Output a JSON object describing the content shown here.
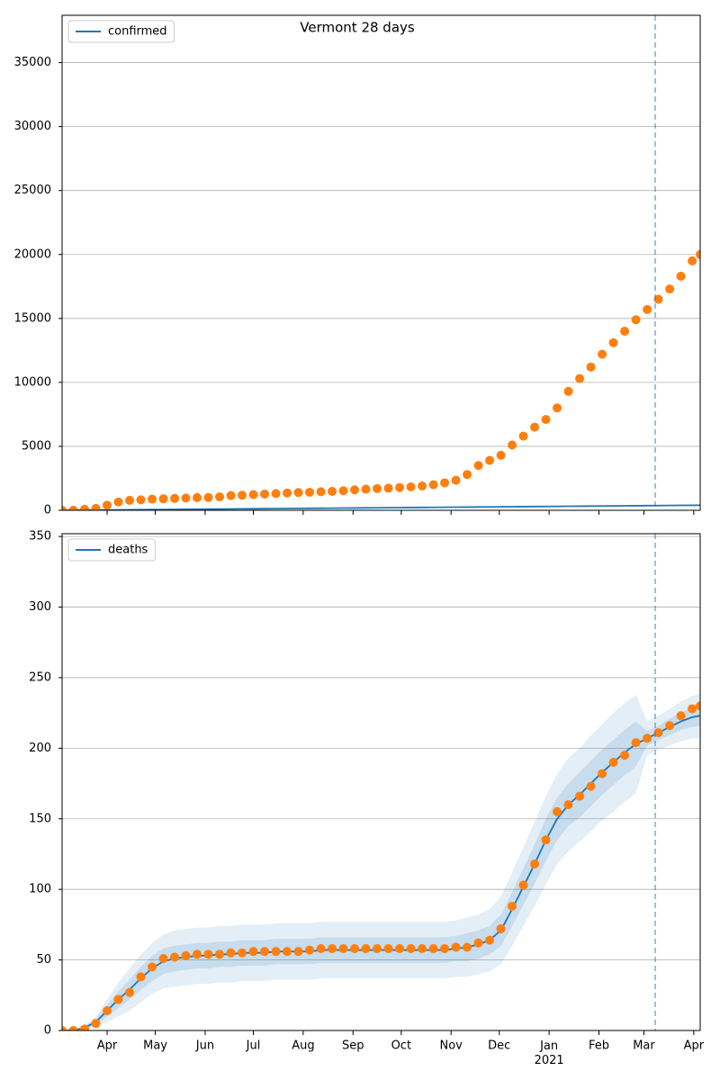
{
  "chart_data": [
    {
      "type": "line",
      "title": "Vermont 28 days",
      "x": [
        63,
        70,
        77,
        84,
        91,
        98,
        105,
        112,
        119,
        126,
        133,
        140,
        147,
        154,
        161,
        168,
        175,
        182,
        189,
        196,
        203,
        210,
        217,
        224,
        231,
        238,
        245,
        252,
        259,
        266,
        273,
        280,
        287,
        294,
        301,
        308,
        315,
        322,
        329,
        336,
        343,
        350,
        357,
        364,
        371,
        378,
        385,
        392,
        399,
        406,
        413,
        420,
        427,
        434,
        441,
        448,
        455,
        460
      ],
      "series": [
        {
          "name": "confirmed",
          "color": "#1f77b4",
          "values": [
            0,
            7,
            14,
            21,
            28,
            35,
            42,
            49,
            56,
            63,
            70,
            77,
            84,
            91,
            98,
            105,
            112,
            119,
            126,
            133,
            140,
            147,
            154,
            161,
            168,
            175,
            182,
            189,
            196,
            203,
            210,
            217,
            224,
            231,
            238,
            245,
            252,
            259,
            266,
            273,
            280,
            287,
            294,
            301,
            308,
            315,
            322,
            329,
            336,
            343,
            350,
            357,
            364,
            371,
            378,
            385,
            392,
            397
          ]
        }
      ],
      "points": {
        "color": "#ff7f0e",
        "values": [
          0,
          10,
          80,
          150,
          400,
          650,
          780,
          820,
          870,
          900,
          930,
          960,
          990,
          1000,
          1050,
          1150,
          1180,
          1230,
          1270,
          1310,
          1350,
          1390,
          1410,
          1450,
          1480,
          1530,
          1600,
          1650,
          1700,
          1730,
          1780,
          1830,
          1900,
          2000,
          2150,
          2350,
          2800,
          3500,
          3900,
          4300,
          5100,
          5800,
          6500,
          7100,
          8000,
          9300,
          10300,
          11200,
          12200,
          13100,
          14000,
          14900,
          15700,
          16500,
          17300,
          18300,
          19500,
          20000
        ]
      },
      "vline": 432,
      "xlim": [
        63,
        460
      ],
      "xticks": [
        91,
        121,
        152,
        182,
        213,
        244,
        274,
        305,
        335,
        366,
        397,
        425,
        456
      ],
      "xtick_labels": false,
      "ylim": [
        0,
        38700
      ],
      "yticks": [
        0,
        5000,
        10000,
        15000,
        20000,
        25000,
        30000,
        35000
      ],
      "grid": true,
      "legend": "upper left"
    },
    {
      "type": "line",
      "x": [
        63,
        70,
        77,
        84,
        91,
        98,
        105,
        112,
        119,
        126,
        133,
        140,
        147,
        154,
        161,
        168,
        175,
        182,
        189,
        196,
        203,
        210,
        217,
        224,
        231,
        238,
        245,
        252,
        259,
        266,
        273,
        280,
        287,
        294,
        301,
        308,
        315,
        322,
        329,
        336,
        343,
        350,
        357,
        364,
        371,
        378,
        385,
        392,
        399,
        406,
        413,
        420,
        427,
        434,
        441,
        448,
        455,
        460
      ],
      "series": [
        {
          "name": "deaths",
          "color": "#1f77b4",
          "values": [
            0,
            0,
            2,
            6,
            14,
            22,
            29,
            37,
            44,
            49,
            51,
            52,
            53,
            53,
            54,
            54,
            55,
            55,
            55,
            56,
            56,
            56,
            56,
            57,
            57,
            57,
            57,
            57,
            57,
            57,
            57,
            57,
            57,
            57,
            57,
            58,
            59,
            61,
            64,
            71,
            86,
            102,
            118,
            135,
            150,
            160,
            167,
            175,
            183,
            190,
            197,
            203,
            207,
            211,
            215,
            219,
            222,
            223
          ]
        }
      ],
      "bands": [
        {
          "color": "#1f77b4",
          "opacity": 0.12,
          "lower": [
            0,
            0,
            0,
            2,
            6,
            10,
            14,
            20,
            26,
            30,
            31,
            32,
            33,
            33,
            34,
            34,
            35,
            35,
            35,
            36,
            36,
            36,
            36,
            37,
            37,
            37,
            37,
            37,
            37,
            37,
            37,
            37,
            37,
            37,
            37,
            38,
            38,
            40,
            42,
            47,
            60,
            74,
            88,
            104,
            118,
            127,
            134,
            141,
            149,
            155,
            162,
            168,
            195,
            199,
            202,
            205,
            207,
            207
          ],
          "upper": [
            0,
            1,
            4,
            10,
            22,
            34,
            44,
            54,
            62,
            68,
            71,
            72,
            73,
            73,
            74,
            74,
            75,
            75,
            75,
            76,
            76,
            76,
            76,
            77,
            77,
            77,
            77,
            77,
            77,
            77,
            77,
            77,
            77,
            77,
            77,
            78,
            80,
            82,
            86,
            95,
            112,
            130,
            148,
            166,
            182,
            193,
            200,
            209,
            217,
            225,
            232,
            238,
            219,
            223,
            228,
            233,
            237,
            239
          ]
        },
        {
          "color": "#1f77b4",
          "opacity": 0.15,
          "lower": [
            0,
            0,
            1,
            4,
            10,
            16,
            22,
            29,
            35,
            40,
            42,
            43,
            44,
            44,
            45,
            45,
            46,
            46,
            46,
            47,
            47,
            47,
            47,
            48,
            48,
            48,
            48,
            48,
            48,
            48,
            48,
            48,
            48,
            48,
            48,
            49,
            49,
            51,
            54,
            60,
            74,
            89,
            104,
            120,
            135,
            145,
            151,
            159,
            167,
            174,
            181,
            187,
            202,
            206,
            209,
            213,
            215,
            216
          ],
          "upper": [
            0,
            0,
            3,
            8,
            18,
            28,
            36,
            45,
            53,
            58,
            60,
            61,
            62,
            62,
            63,
            63,
            64,
            64,
            64,
            65,
            65,
            65,
            65,
            66,
            66,
            66,
            66,
            66,
            66,
            66,
            66,
            66,
            66,
            66,
            66,
            67,
            69,
            71,
            74,
            82,
            98,
            115,
            132,
            150,
            165,
            175,
            183,
            191,
            199,
            206,
            213,
            219,
            212,
            216,
            221,
            225,
            229,
            230
          ]
        }
      ],
      "points": {
        "color": "#ff7f0e",
        "values": [
          0,
          0,
          1,
          5,
          14,
          22,
          27,
          38,
          45,
          51,
          52,
          53,
          54,
          54,
          54,
          55,
          55,
          56,
          56,
          56,
          56,
          56,
          57,
          58,
          58,
          58,
          58,
          58,
          58,
          58,
          58,
          58,
          58,
          58,
          58,
          59,
          59,
          62,
          64,
          72,
          88,
          103,
          118,
          135,
          155,
          160,
          166,
          173,
          182,
          190,
          195,
          204,
          207,
          211,
          216,
          223,
          228,
          230
        ]
      },
      "vline": 432,
      "xlim": [
        63,
        460
      ],
      "xticks": [
        {
          "value": 91,
          "label": "Apr"
        },
        {
          "value": 121,
          "label": "May"
        },
        {
          "value": 152,
          "label": "Jun"
        },
        {
          "value": 182,
          "label": "Jul"
        },
        {
          "value": 213,
          "label": "Aug"
        },
        {
          "value": 244,
          "label": "Sep"
        },
        {
          "value": 274,
          "label": "Oct"
        },
        {
          "value": 305,
          "label": "Nov"
        },
        {
          "value": 335,
          "label": "Dec"
        },
        {
          "value": 366,
          "label": "Jan\n2021"
        },
        {
          "value": 397,
          "label": "Feb"
        },
        {
          "value": 425,
          "label": "Mar"
        },
        {
          "value": 456,
          "label": "Apr"
        }
      ],
      "xtick_labels": true,
      "ylim": [
        0,
        352
      ],
      "yticks": [
        0,
        50,
        100,
        150,
        200,
        250,
        300,
        350
      ],
      "grid": true,
      "legend": "upper left"
    }
  ]
}
